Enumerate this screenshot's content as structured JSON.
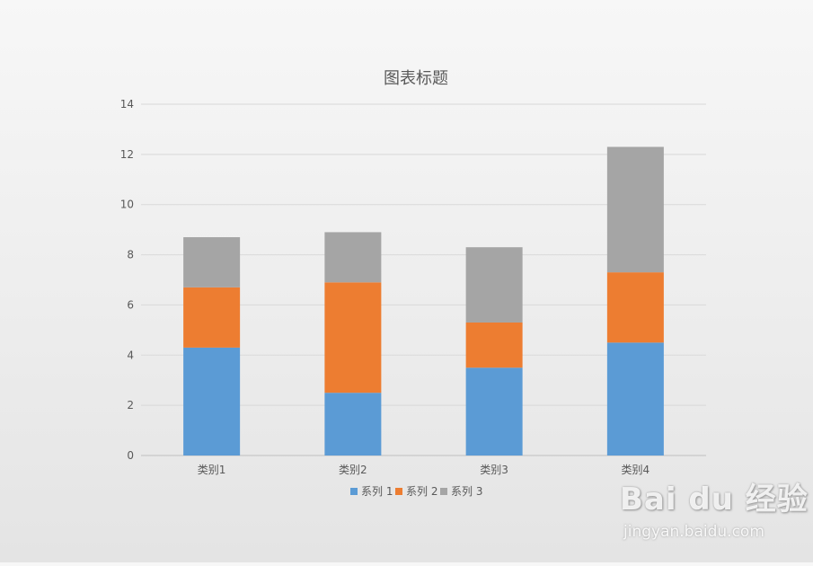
{
  "chart_data": {
    "type": "bar",
    "stacked": true,
    "title": "图表标题",
    "xlabel": "",
    "ylabel": "",
    "categories": [
      "类别1",
      "类别2",
      "类别3",
      "类别4"
    ],
    "series": [
      {
        "name": "系列 1",
        "values": [
          4.3,
          2.5,
          3.5,
          4.5
        ],
        "color": "#5b9bd5"
      },
      {
        "name": "系列 2",
        "values": [
          2.4,
          4.4,
          1.8,
          2.8
        ],
        "color": "#ed7d31"
      },
      {
        "name": "系列 3",
        "values": [
          2.0,
          2.0,
          3.0,
          5.0
        ],
        "color": "#a5a5a5"
      }
    ],
    "ylim": [
      0,
      14
    ],
    "yticks": [
      "0",
      "2",
      "4",
      "6",
      "8",
      "10",
      "12",
      "14"
    ],
    "grid": true,
    "legend_position": "bottom"
  },
  "watermark": {
    "logo_text": "Bai du 经验",
    "sub_text": "jingyan.baidu.com"
  }
}
